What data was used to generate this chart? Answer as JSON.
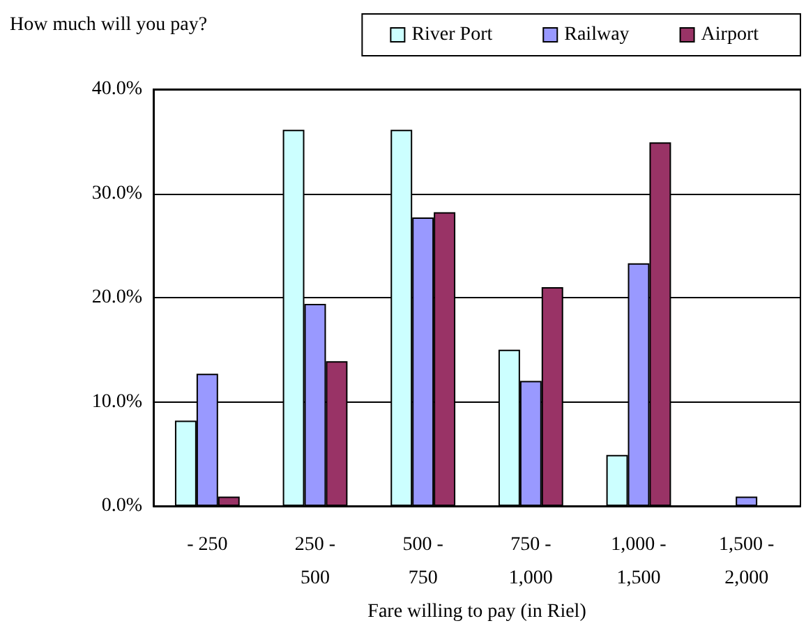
{
  "chart_data": {
    "type": "bar",
    "title": "How much will you pay?",
    "xlabel": "Fare willing to pay (in Riel)",
    "categories": [
      "- 250",
      "250 -\n500",
      "500 -\n750",
      "750 -\n1,000",
      "1,000 -\n1,500",
      "1,500 -\n2,000"
    ],
    "series": [
      {
        "name": "River Port",
        "color": "#ccffff",
        "values": [
          8.2,
          36.1,
          36.1,
          15.0,
          4.9,
          null
        ]
      },
      {
        "name": "Railway",
        "color": "#9999ff",
        "values": [
          12.7,
          19.4,
          27.7,
          12.0,
          23.3,
          0.9
        ]
      },
      {
        "name": "Airport",
        "color": "#993366",
        "values": [
          0.9,
          13.9,
          28.2,
          21.0,
          34.9,
          null
        ]
      }
    ],
    "ylim": [
      0,
      40
    ],
    "yticks": [
      {
        "value": 0,
        "label": "0.0%"
      },
      {
        "value": 10,
        "label": "10.0%"
      },
      {
        "value": 20,
        "label": "20.0%"
      },
      {
        "value": 30,
        "label": "30.0%"
      },
      {
        "value": 40,
        "label": "40.0%"
      }
    ],
    "grid": "y",
    "legend": "top right"
  }
}
